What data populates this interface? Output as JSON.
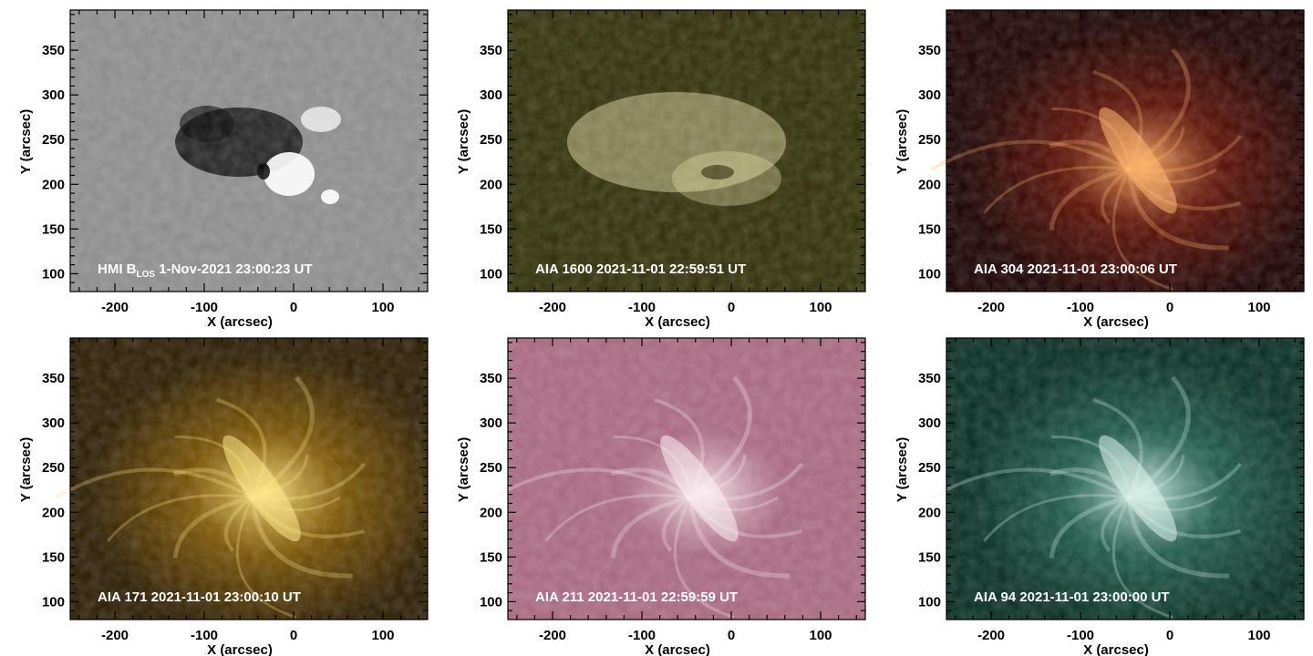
{
  "figure": {
    "panels": [
      {
        "id": "hmi-blos",
        "caption_prefix": "HMI B",
        "caption_subscript": "LOS",
        "caption_suffix": " 1-Nov-2021 23:00:23 UT",
        "xlabel": "X (arcsec)",
        "ylabel": "Y (arcsec)",
        "x_ticks": [
          "-200",
          "-100",
          "0",
          "100"
        ],
        "y_ticks": [
          "100",
          "150",
          "200",
          "250",
          "300",
          "350"
        ],
        "colormap": {
          "low": "#000000",
          "mid": "#8a8a8a",
          "high": "#ffffff"
        }
      },
      {
        "id": "aia-1600",
        "caption": "AIA 1600 2021-11-01 22:59:51 UT",
        "xlabel": "X (arcsec)",
        "ylabel": "Y (arcsec)",
        "x_ticks": [
          "-200",
          "-100",
          "0",
          "100"
        ],
        "y_ticks": [
          "100",
          "150",
          "200",
          "250",
          "300",
          "350"
        ],
        "colormap": {
          "low": "#2f2d06",
          "mid": "#6e6a1c",
          "high": "#e7e4a8"
        }
      },
      {
        "id": "aia-304",
        "caption": "AIA 304 2021-11-01 23:00:06 UT",
        "xlabel": "X (arcsec)",
        "ylabel": "Y (arcsec)",
        "x_ticks": [
          "-200",
          "-100",
          "0",
          "100"
        ],
        "y_ticks": [
          "100",
          "150",
          "200",
          "250",
          "300",
          "350"
        ],
        "colormap": {
          "low": "#1a0000",
          "mid": "#8a1804",
          "high": "#ffb060"
        }
      },
      {
        "id": "aia-171",
        "caption": "AIA 171 2021-11-01 23:00:10 UT",
        "xlabel": "X (arcsec)",
        "ylabel": "Y (arcsec)",
        "x_ticks": [
          "-200",
          "-100",
          "0",
          "100"
        ],
        "y_ticks": [
          "100",
          "150",
          "200",
          "250",
          "300",
          "350"
        ],
        "colormap": {
          "low": "#2a1a00",
          "mid": "#b07a00",
          "high": "#ffe680"
        }
      },
      {
        "id": "aia-211",
        "caption": "AIA 211 2021-11-01 22:59:59 UT",
        "xlabel": "X (arcsec)",
        "ylabel": "Y (arcsec)",
        "x_ticks": [
          "-200",
          "-100",
          "0",
          "100"
        ],
        "y_ticks": [
          "100",
          "150",
          "200",
          "250",
          "300",
          "350"
        ],
        "colormap": {
          "low": "#3a0f26",
          "mid": "#a6667e",
          "high": "#fbeef2"
        }
      },
      {
        "id": "aia-94",
        "caption": "AIA 94 2021-11-01 23:00:00 UT",
        "xlabel": "X (arcsec)",
        "ylabel": "Y (arcsec)",
        "x_ticks": [
          "-200",
          "-100",
          "0",
          "100"
        ],
        "y_ticks": [
          "100",
          "150",
          "200",
          "250",
          "300",
          "350"
        ],
        "colormap": {
          "low": "#062c22",
          "mid": "#2f7a68",
          "high": "#d8f2ea"
        }
      }
    ]
  }
}
